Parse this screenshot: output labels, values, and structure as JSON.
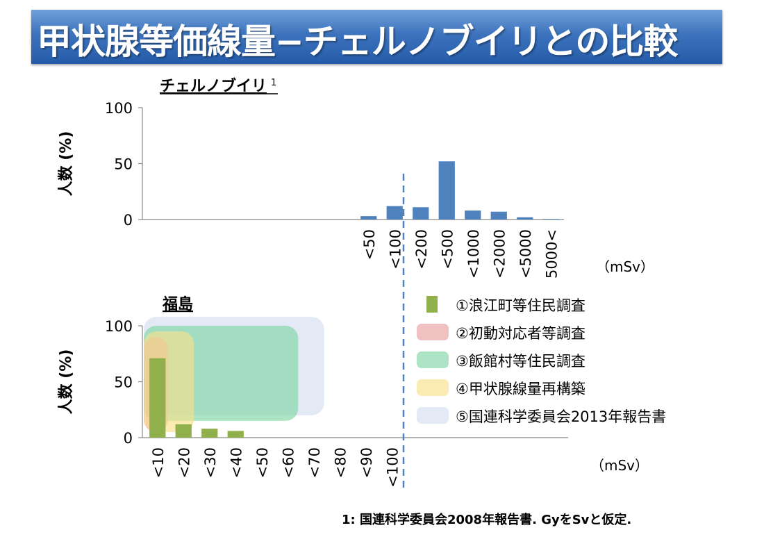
{
  "title": "甲状腺等価線量−チェルノブイリとの比較",
  "chart_data": [
    {
      "type": "bar",
      "title": "チェルノブイリ",
      "title_superscript": "1",
      "ylabel": "人数 (%)",
      "unit": "（mSv）",
      "ylim": [
        0,
        100
      ],
      "yticks": [
        "100",
        "50",
        "0"
      ],
      "categories": [
        "<50",
        "<100",
        "<200",
        "<500",
        "<1000",
        "<2000",
        "<5000",
        "5000<"
      ],
      "values": [
        3,
        12,
        11,
        52,
        8,
        7,
        2,
        0.5
      ],
      "color": "#4f81bd"
    },
    {
      "type": "bar",
      "title": "福島",
      "ylabel": "人数 (%)",
      "unit": "（mSv）",
      "ylim": [
        0,
        100
      ],
      "yticks": [
        "100",
        "50",
        "0"
      ],
      "categories": [
        "<10",
        "<20",
        "<30",
        "<40",
        "<50",
        "<60",
        "<70",
        "<80",
        "<90",
        "<100"
      ],
      "values": [
        71,
        12,
        8,
        6,
        0,
        0,
        0,
        0,
        0,
        0
      ],
      "color": "#8fb04a",
      "ranges": [
        {
          "name": "②初動対応者等調査",
          "x_end_category": "<10",
          "y_range": [
            5,
            90
          ],
          "color": "#e6a0a0"
        },
        {
          "name": "③飯館村等住民調査",
          "x_end_category": "<60",
          "y_range": [
            15,
            100
          ],
          "color": "#7fd6a6"
        },
        {
          "name": "④甲状腺線量再構築",
          "x_end_category": "<20",
          "y_range": [
            5,
            95
          ],
          "color": "#f8e08a"
        },
        {
          "name": "⑤国連科学委員会2013年報告書",
          "x_end_category": "<70",
          "y_range": [
            20,
            108
          ],
          "color": "#d4deef"
        }
      ]
    }
  ],
  "legend": [
    {
      "label": "①浪江町等住民調査",
      "color": "#8fb04a",
      "kind": "bar"
    },
    {
      "label": "②初動対応者等調査",
      "color": "#e6a0a0",
      "kind": "range"
    },
    {
      "label": "③飯館村等住民調査",
      "color": "#7fd6a6",
      "kind": "range"
    },
    {
      "label": "④甲状腺線量再構築",
      "color": "#f8e08a",
      "kind": "range"
    },
    {
      "label": "⑤国連科学委員会2013年報告書",
      "color": "#d4deef",
      "kind": "range"
    }
  ],
  "footnote": "1: 国連科学委員会2008年報告書. GyをSvと仮定."
}
